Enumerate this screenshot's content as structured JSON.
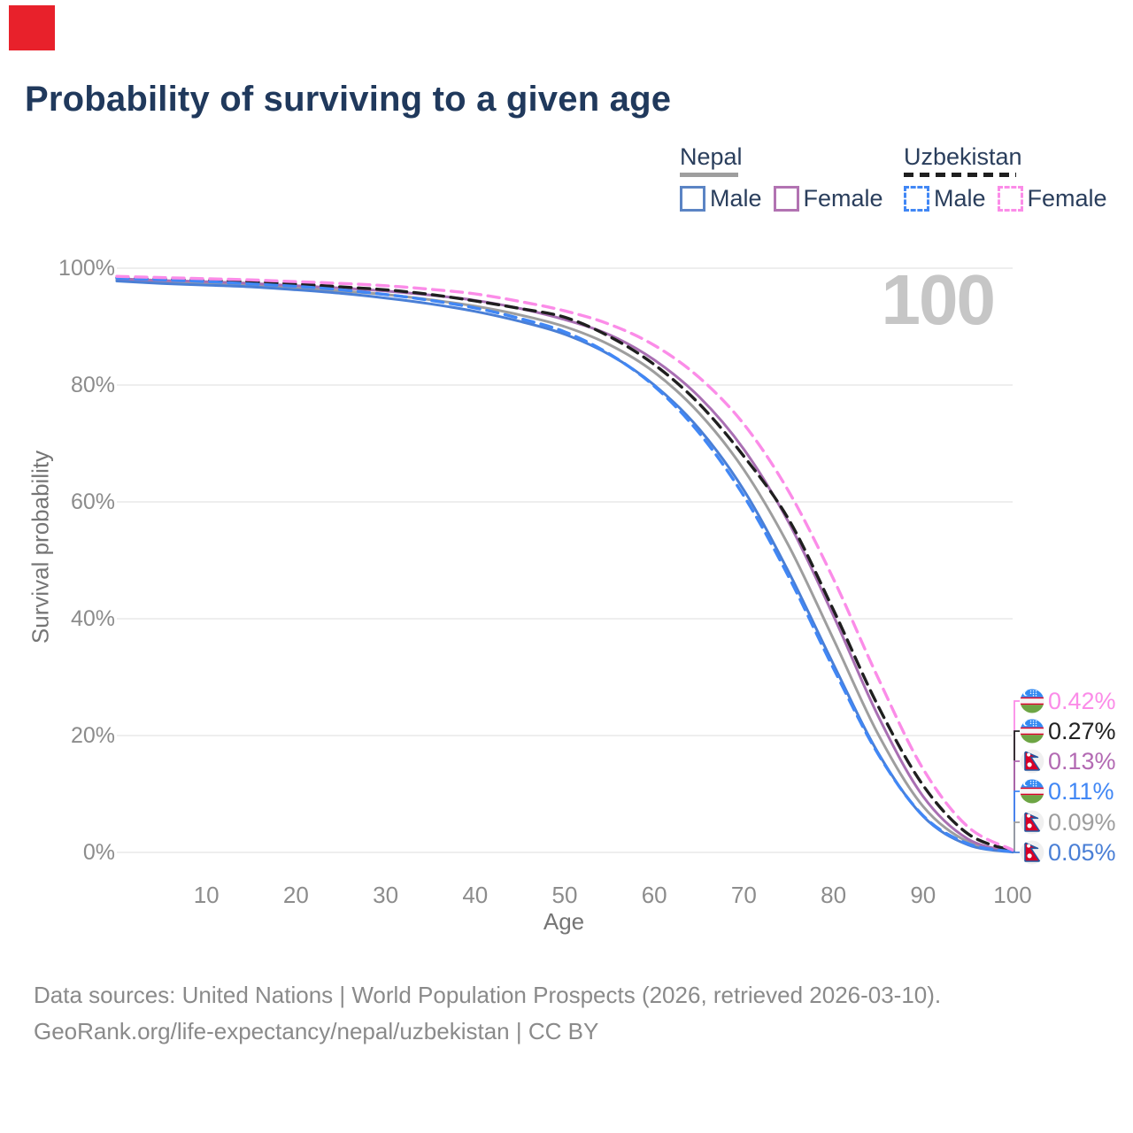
{
  "title": "Probability of surviving to a given age",
  "corner_marker_color": "#e8212b",
  "watermark": "100",
  "legend": {
    "groups": [
      {
        "country": "Nepal",
        "line": "solid",
        "line_color": "#9e9e9e",
        "items": [
          {
            "label": "Male",
            "color": "#5b84c4",
            "dash": false
          },
          {
            "label": "Female",
            "color": "#b273b2",
            "dash": false
          }
        ]
      },
      {
        "country": "Uzbekistan",
        "line": "dashed",
        "line_color": "#1f1f1f",
        "items": [
          {
            "label": "Male",
            "color": "#4187f5",
            "dash": true
          },
          {
            "label": "Female",
            "color": "#fb8ce8",
            "dash": true
          }
        ]
      }
    ]
  },
  "yaxis": {
    "title": "Survival probability",
    "ticks": [
      "100%",
      "80%",
      "60%",
      "40%",
      "20%",
      "0%"
    ]
  },
  "xaxis": {
    "title": "Age",
    "ticks": [
      10,
      20,
      30,
      40,
      50,
      60,
      70,
      80,
      90,
      100
    ]
  },
  "footer": {
    "line1": "Data sources: United Nations | World Population Prospects (2026, retrieved 2026-03-10).",
    "line2": "GeoRank.org/life-expectancy/nepal/uzbekistan | CC BY"
  },
  "chart_data": {
    "type": "line",
    "title": "Probability of surviving to a given age",
    "xlabel": "Age",
    "ylabel": "Survival probability",
    "xlim": [
      0,
      100
    ],
    "ylim": [
      0,
      100
    ],
    "grid": "horizontal",
    "legend_position": "top-right",
    "x_ages": [
      0,
      5,
      10,
      15,
      20,
      25,
      30,
      35,
      40,
      45,
      50,
      55,
      60,
      65,
      70,
      75,
      80,
      85,
      90,
      95,
      100
    ],
    "series": [
      {
        "id": "nepal-total",
        "name": "Nepal Total",
        "country": "Nepal",
        "sex": "total",
        "dash": false,
        "color": "#9e9e9e",
        "values": [
          98.0,
          97.6,
          97.4,
          97.1,
          96.6,
          96.1,
          95.5,
          94.6,
          93.5,
          92.0,
          90.0,
          86.9,
          82.2,
          75.2,
          65.5,
          52.5,
          36.5,
          20.2,
          7.9,
          1.8,
          0.09
        ]
      },
      {
        "id": "nepal-female",
        "name": "Nepal Female",
        "country": "Nepal",
        "sex": "female",
        "dash": false,
        "color": "#a96fb3",
        "values": [
          98.2,
          97.9,
          97.7,
          97.4,
          97.0,
          96.6,
          96.1,
          95.4,
          94.5,
          93.1,
          91.2,
          88.6,
          84.3,
          78.0,
          69.0,
          56.5,
          40.5,
          23.3,
          9.6,
          2.3,
          0.13
        ]
      },
      {
        "id": "nepal-male",
        "name": "Nepal Male",
        "country": "Nepal",
        "sex": "male",
        "dash": false,
        "color": "#4a7fd6",
        "values": [
          97.8,
          97.4,
          97.1,
          96.8,
          96.3,
          95.7,
          94.9,
          93.9,
          92.6,
          90.9,
          88.7,
          85.2,
          80.0,
          72.5,
          62.0,
          48.0,
          32.2,
          17.0,
          6.2,
          1.3,
          0.05
        ]
      },
      {
        "id": "uzbekistan-total",
        "name": "Uzbekistan Total",
        "country": "Uzbekistan",
        "sex": "total",
        "dash": true,
        "color": "#1f1f1f",
        "values": [
          98.4,
          98.2,
          98.0,
          97.7,
          97.3,
          96.8,
          96.3,
          95.5,
          94.4,
          93.1,
          91.6,
          88.3,
          83.5,
          76.8,
          67.8,
          57.0,
          41.5,
          25.0,
          11.5,
          3.2,
          0.27
        ]
      },
      {
        "id": "uzbekistan-male",
        "name": "Uzbekistan Male",
        "country": "Uzbekistan",
        "sex": "male",
        "dash": true,
        "color": "#4187f5",
        "values": [
          98.3,
          98.0,
          97.7,
          97.3,
          96.9,
          96.3,
          95.5,
          94.5,
          93.2,
          91.4,
          89.1,
          85.3,
          79.8,
          71.8,
          61.0,
          47.2,
          31.5,
          16.8,
          6.3,
          1.5,
          0.11
        ]
      },
      {
        "id": "uzbekistan-female",
        "name": "Uzbekistan Female",
        "country": "Uzbekistan",
        "sex": "female",
        "dash": true,
        "color": "#fb8ce8",
        "values": [
          98.6,
          98.4,
          98.2,
          98.0,
          97.7,
          97.4,
          97.0,
          96.4,
          95.6,
          94.3,
          92.7,
          90.4,
          86.8,
          81.3,
          73.3,
          61.8,
          46.8,
          29.8,
          14.3,
          4.4,
          0.42
        ]
      }
    ],
    "end_labels": [
      {
        "text": "0.42%",
        "color": "#fb8ce8",
        "flag": "uzbekistan",
        "series": "Uzbekistan Female"
      },
      {
        "text": "0.27%",
        "color": "#222222",
        "flag": "uzbekistan",
        "series": "Uzbekistan Total"
      },
      {
        "text": "0.13%",
        "color": "#b36ab3",
        "flag": "nepal",
        "series": "Nepal Female"
      },
      {
        "text": "0.11%",
        "color": "#4187f5",
        "flag": "uzbekistan",
        "series": "Uzbekistan Male"
      },
      {
        "text": "0.09%",
        "color": "#9e9e9e",
        "flag": "nepal",
        "series": "Nepal Total"
      },
      {
        "text": "0.05%",
        "color": "#4a7fd6",
        "flag": "nepal",
        "series": "Nepal Male"
      }
    ]
  }
}
